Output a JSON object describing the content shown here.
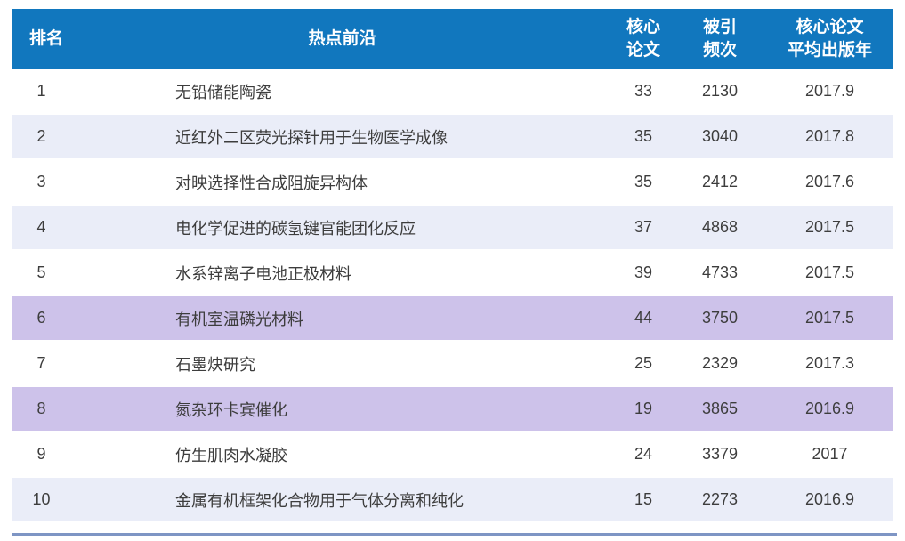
{
  "colors": {
    "header_bg": "#1177BE",
    "header_text": "#FFFFFF",
    "row_alt_bg": "#EAEDF8",
    "row_highlight_bg": "#CDC2EA",
    "cell_text": "#3D3D3D",
    "bottom_rule": "#7E95C4"
  },
  "table": {
    "header": {
      "rank": "排名",
      "topic": "热点前沿",
      "core_line1": "核心",
      "core_line2": "论文",
      "cited_line1": "被引",
      "cited_line2": "频次",
      "year_line1": "核心论文",
      "year_line2": "平均出版年"
    },
    "rows": [
      {
        "rank": "1",
        "topic": "无铅储能陶瓷",
        "core": "33",
        "cited": "2130",
        "year": "2017.9",
        "highlight": false
      },
      {
        "rank": "2",
        "topic": "近红外二区荧光探针用于生物医学成像",
        "core": "35",
        "cited": "3040",
        "year": "2017.8",
        "highlight": false
      },
      {
        "rank": "3",
        "topic": "对映选择性合成阻旋异构体",
        "core": "35",
        "cited": "2412",
        "year": "2017.6",
        "highlight": false
      },
      {
        "rank": "4",
        "topic": "电化学促进的碳氢键官能团化反应",
        "core": "37",
        "cited": "4868",
        "year": "2017.5",
        "highlight": false
      },
      {
        "rank": "5",
        "topic": "水系锌离子电池正极材料",
        "core": "39",
        "cited": "4733",
        "year": "2017.5",
        "highlight": false
      },
      {
        "rank": "6",
        "topic": "有机室温磷光材料",
        "core": "44",
        "cited": "3750",
        "year": "2017.5",
        "highlight": true
      },
      {
        "rank": "7",
        "topic": "石墨炔研究",
        "core": "25",
        "cited": "2329",
        "year": "2017.3",
        "highlight": false
      },
      {
        "rank": "8",
        "topic": "氮杂环卡宾催化",
        "core": "19",
        "cited": "3865",
        "year": "2016.9",
        "highlight": true
      },
      {
        "rank": "9",
        "topic": "仿生肌肉水凝胶",
        "core": "24",
        "cited": "3379",
        "year": "2017",
        "highlight": false
      },
      {
        "rank": "10",
        "topic": "金属有机框架化合物用于气体分离和纯化",
        "core": "15",
        "cited": "2273",
        "year": "2016.9",
        "highlight": false
      }
    ]
  },
  "chart_data": {
    "type": "table",
    "title": "",
    "columns": [
      "排名",
      "热点前沿",
      "核心论文",
      "被引频次",
      "核心论文平均出版年"
    ],
    "rows": [
      [
        1,
        "无铅储能陶瓷",
        33,
        2130,
        "2017.9"
      ],
      [
        2,
        "近红外二区荧光探针用于生物医学成像",
        35,
        3040,
        "2017.8"
      ],
      [
        3,
        "对映选择性合成阻旋异构体",
        35,
        2412,
        "2017.6"
      ],
      [
        4,
        "电化学促进的碳氢键官能团化反应",
        37,
        4868,
        "2017.5"
      ],
      [
        5,
        "水系锌离子电池正极材料",
        39,
        4733,
        "2017.5"
      ],
      [
        6,
        "有机室温磷光材料",
        44,
        3750,
        "2017.5"
      ],
      [
        7,
        "石墨炔研究",
        25,
        2329,
        "2017.3"
      ],
      [
        8,
        "氮杂环卡宾催化",
        19,
        3865,
        "2016.9"
      ],
      [
        9,
        "仿生肌肉水凝胶",
        24,
        3379,
        "2017"
      ],
      [
        10,
        "金属有机框架化合物用于气体分离和纯化",
        15,
        2273,
        "2016.9"
      ]
    ],
    "highlighted_rows": [
      6,
      8
    ],
    "layout": "blue header row, alternating white / pale-blue body rows, lavender highlight on rows 6 and 8, steel-blue rule under table"
  }
}
